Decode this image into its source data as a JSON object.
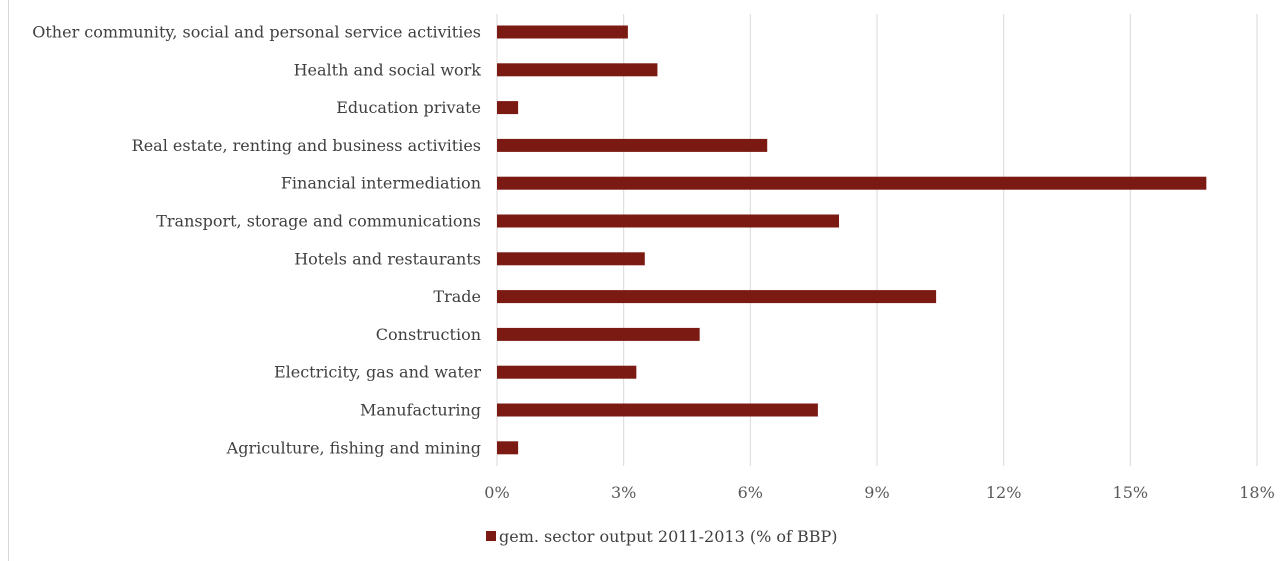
{
  "chart_data": {
    "type": "bar",
    "orientation": "horizontal",
    "categories": [
      "Other community, social and personal service activities",
      "Health and social work",
      "Education private",
      "Real estate, renting and business activities",
      "Financial intermediation",
      "Transport, storage and communications",
      "Hotels and restaurants",
      "Trade",
      "Construction",
      "Electricity, gas and water",
      "Manufacturing",
      "Agriculture, fishing and mining"
    ],
    "series": [
      {
        "name": "gem. sector output 2011-2013 (% of BBP)",
        "color": "#7b1a12",
        "values": [
          3.1,
          3.8,
          0.5,
          6.4,
          16.8,
          8.1,
          3.5,
          10.4,
          4.8,
          3.3,
          7.6,
          0.5
        ]
      }
    ],
    "xlim": [
      0,
      18
    ],
    "xticks": [
      "0%",
      "3%",
      "6%",
      "9%",
      "12%",
      "15%",
      "18%"
    ],
    "grid": true,
    "legend_position": "bottom",
    "title": "",
    "xlabel": "",
    "ylabel": ""
  }
}
